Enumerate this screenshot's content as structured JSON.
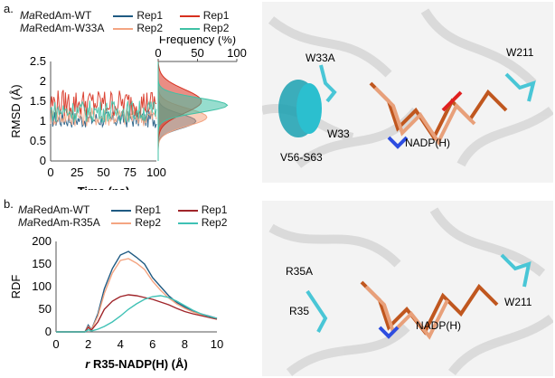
{
  "panels": {
    "a": {
      "label": "a.",
      "legend": {
        "rows": [
          {
            "prefix": "Ma",
            "name": "RedAm-WT",
            "entries": [
              {
                "label": "Rep1",
                "color": "#1f5a82"
              },
              {
                "label": "Rep1",
                "color": "#d7301f"
              }
            ]
          },
          {
            "prefix": "Ma",
            "name": "RedAm-W33A",
            "entries": [
              {
                "label": "Rep2",
                "color": "#f4a582"
              },
              {
                "label": "Rep2",
                "color": "#3fc1a5"
              }
            ]
          }
        ]
      },
      "structure_labels": [
        "W33A",
        "W211",
        "W33",
        "NADP(H)",
        "V56-S63"
      ]
    },
    "b": {
      "label": "b.",
      "legend": {
        "rows": [
          {
            "prefix": "Ma",
            "name": "RedAm-WT",
            "entries": [
              {
                "label": "Rep1",
                "color": "#1f5a82"
              },
              {
                "label": "Rep1",
                "color": "#a0252a"
              }
            ]
          },
          {
            "prefix": "Ma",
            "name": "RedAm-R35A",
            "entries": [
              {
                "label": "Rep2",
                "color": "#f4a582"
              },
              {
                "label": "Rep2",
                "color": "#3fc1b5"
              }
            ]
          }
        ]
      },
      "structure_labels": [
        "R35A",
        "R35",
        "W211",
        "NADP(H)"
      ]
    }
  },
  "chart_data": [
    {
      "type": "line",
      "ylabel": "RMSD (Å)",
      "xlabel": "Time (ns)",
      "xlim": [
        0,
        100
      ],
      "ylim": [
        0,
        2.5
      ],
      "xticks": [
        "0",
        "25",
        "50",
        "75",
        "100"
      ],
      "yticks": [
        "0",
        "0.5",
        "1",
        "1.5",
        "2",
        "2.5"
      ],
      "series": [
        {
          "name": "Rep1",
          "color": "#1f5a82",
          "mean": 1.05,
          "amp": 0.22
        },
        {
          "name": "Rep2",
          "color": "#f4a582",
          "mean": 1.12,
          "amp": 0.25
        },
        {
          "name": "Rep1",
          "color": "#d7301f",
          "mean": 1.45,
          "amp": 0.35
        },
        {
          "name": "Rep2",
          "color": "#3fc1a5",
          "mean": 1.25,
          "amp": 0.28
        }
      ]
    },
    {
      "type": "area",
      "xlabel": "Frequency (%)",
      "xlim": [
        0,
        100
      ],
      "xticks": [
        "0",
        "50",
        "100"
      ],
      "ylim": [
        0,
        2.5
      ],
      "series": [
        {
          "name": "Rep1",
          "color": "#1f5a82",
          "peak_y": 1.0,
          "peak_freq": 48,
          "width": 0.18
        },
        {
          "name": "Rep2",
          "color": "#f4a582",
          "peak_y": 1.1,
          "peak_freq": 62,
          "width": 0.22
        },
        {
          "name": "Rep1",
          "color": "#d7301f",
          "peak_y": 1.5,
          "peak_freq": 55,
          "width": 0.3
        },
        {
          "name": "Rep2",
          "color": "#3fc1a5",
          "peak_y": 1.4,
          "peak_freq": 88,
          "width": 0.18
        }
      ]
    },
    {
      "type": "line",
      "ylabel": "RDF",
      "xlabel": "r R35-NADP(H) (Å)",
      "xlabel_italic": "r",
      "xlabel_rest": " R35-NADP(H) (Å)",
      "xlim": [
        0,
        10
      ],
      "ylim": [
        0,
        200
      ],
      "xticks": [
        "0",
        "2",
        "4",
        "6",
        "8",
        "10"
      ],
      "yticks": [
        "0",
        "50",
        "100",
        "150",
        "200"
      ],
      "series": [
        {
          "name": "Rep1",
          "color": "#1f5a82",
          "x": [
            0,
            1.8,
            2.0,
            2.2,
            2.6,
            3.0,
            3.5,
            4.0,
            4.5,
            5.0,
            5.5,
            6.0,
            6.5,
            7.0,
            7.5,
            8.0,
            8.5,
            9.0,
            9.5,
            10
          ],
          "y": [
            0,
            0,
            15,
            5,
            40,
            95,
            140,
            170,
            178,
            165,
            150,
            120,
            100,
            80,
            65,
            55,
            45,
            40,
            35,
            30
          ]
        },
        {
          "name": "Rep2",
          "color": "#f4a582",
          "x": [
            0,
            1.8,
            2.0,
            2.2,
            2.6,
            3.0,
            3.5,
            4.0,
            4.5,
            5.0,
            5.5,
            6.0,
            6.5,
            7.0,
            7.5,
            8.0,
            8.5,
            9.0,
            9.5,
            10
          ],
          "y": [
            0,
            0,
            12,
            5,
            35,
            85,
            130,
            158,
            162,
            152,
            138,
            112,
            92,
            75,
            62,
            52,
            44,
            38,
            32,
            28
          ]
        },
        {
          "name": "Rep1",
          "color": "#a0252a",
          "x": [
            0,
            1.8,
            2.0,
            2.2,
            2.6,
            3.0,
            3.5,
            4.0,
            4.5,
            5.0,
            5.5,
            6.0,
            6.5,
            7.0,
            7.5,
            8.0,
            8.5,
            9.0,
            9.5,
            10
          ],
          "y": [
            0,
            0,
            10,
            4,
            22,
            50,
            68,
            78,
            82,
            80,
            76,
            72,
            66,
            60,
            52,
            45,
            40,
            36,
            32,
            28
          ]
        },
        {
          "name": "Rep2",
          "color": "#3fc1b5",
          "x": [
            0,
            1.8,
            2.0,
            2.2,
            2.6,
            3.0,
            3.5,
            4.0,
            4.5,
            5.0,
            5.5,
            6.0,
            6.5,
            7.0,
            7.5,
            8.0,
            8.5,
            9.0,
            9.5,
            10
          ],
          "y": [
            0,
            0,
            5,
            2,
            6,
            12,
            22,
            35,
            50,
            62,
            72,
            78,
            80,
            76,
            68,
            58,
            48,
            40,
            34,
            30
          ]
        }
      ]
    }
  ]
}
